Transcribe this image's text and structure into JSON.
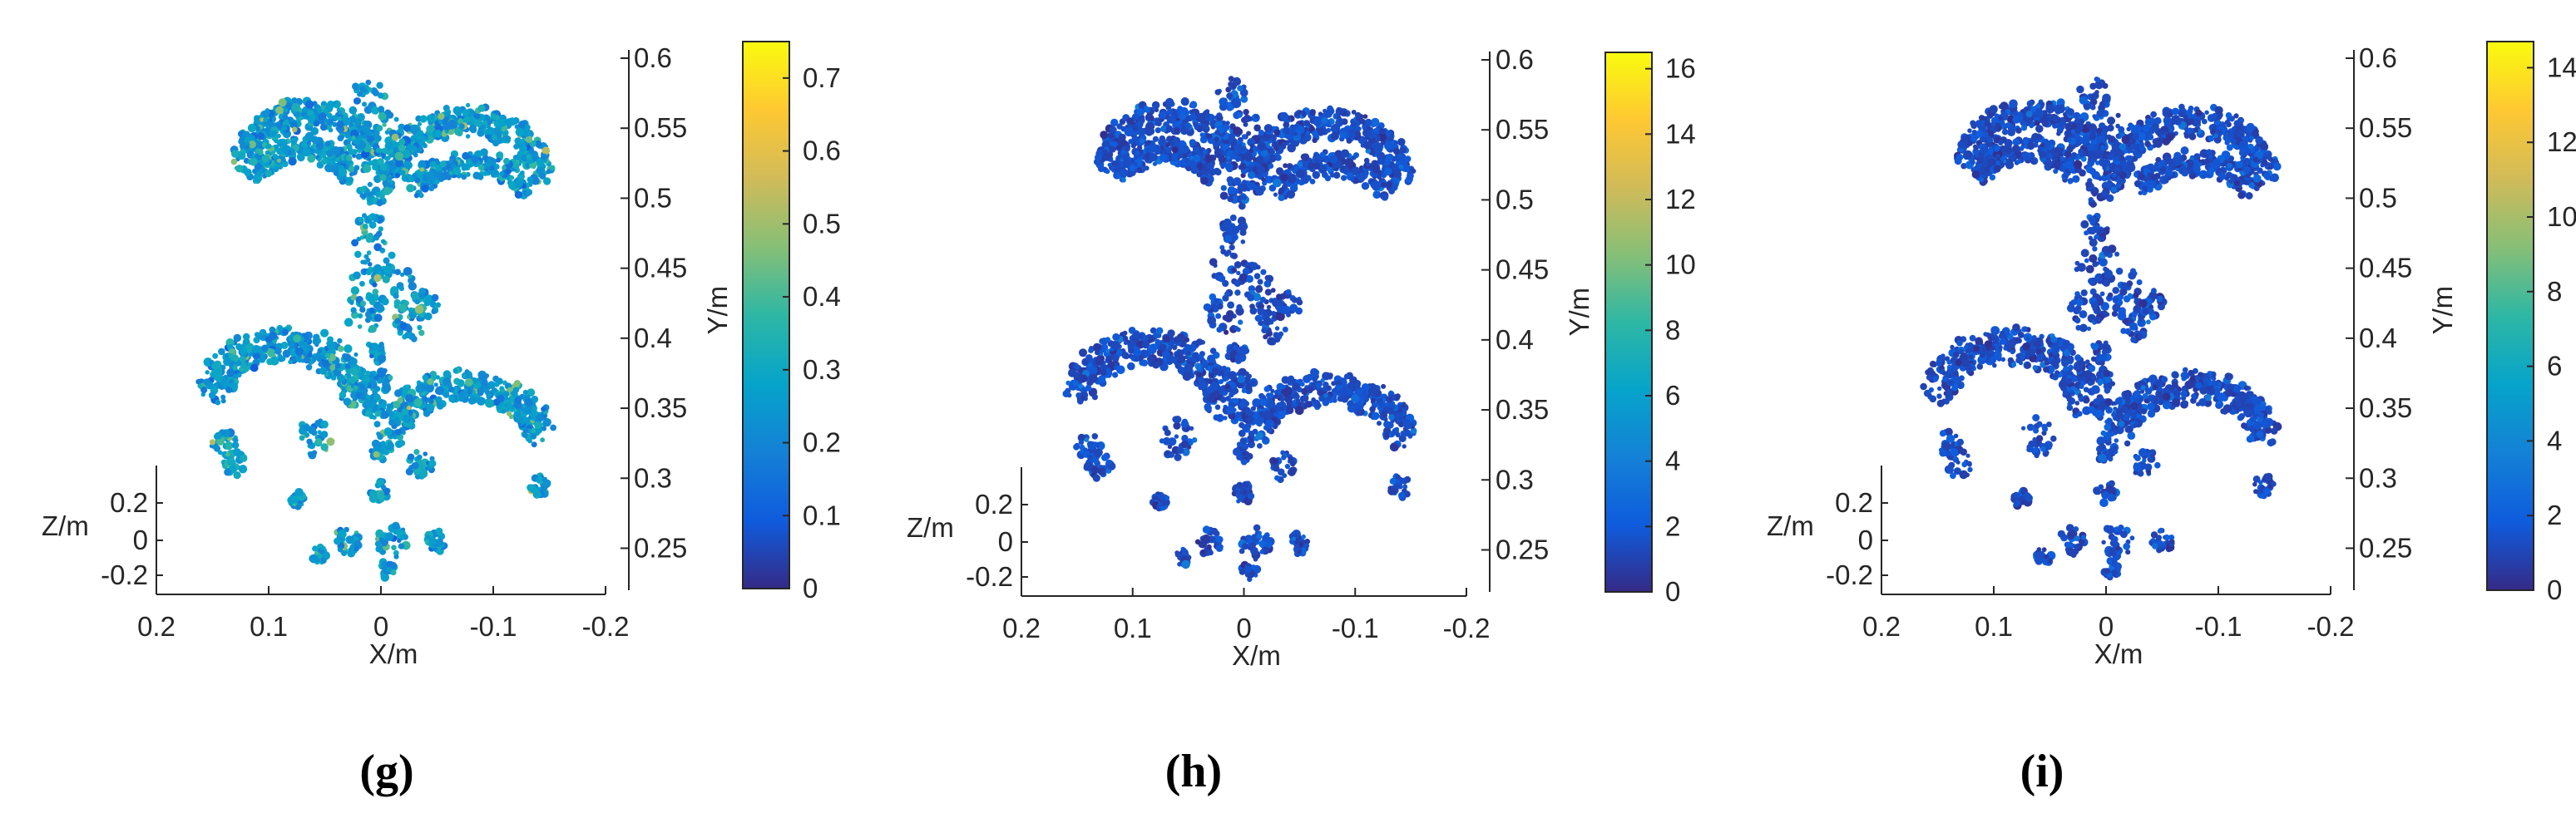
{
  "chart_data": [
    {
      "type": "scatter",
      "subtype": "3d-point-cloud",
      "panel_label": "(g)",
      "xlabel": "X/m",
      "ylabel": "Y/m",
      "zlabel": "Z/m",
      "x_ticks": [
        "0.2",
        "0.1",
        "0",
        "-0.1",
        "-0.2"
      ],
      "y_ticks": [
        "0.25",
        "0.3",
        "0.35",
        "0.4",
        "0.45",
        "0.5",
        "0.55",
        "0.6"
      ],
      "z_ticks": [
        "0.2",
        "0",
        "-0.2"
      ],
      "xlim": [
        0.2,
        -0.2
      ],
      "ylim": [
        0.22,
        0.6
      ],
      "zlim": [
        -0.2,
        0.3
      ],
      "colorbar": {
        "min": 0,
        "max": 0.75,
        "ticks": [
          "0",
          "0.1",
          "0.2",
          "0.3",
          "0.4",
          "0.5",
          "0.6",
          "0.7"
        ],
        "colormap": "parula"
      },
      "dominant_value": 0.25,
      "value_spread": 0.08
    },
    {
      "type": "scatter",
      "subtype": "3d-point-cloud",
      "panel_label": "(h)",
      "xlabel": "X/m",
      "ylabel": "Y/m",
      "zlabel": "Z/m",
      "x_ticks": [
        "0.2",
        "0.1",
        "0",
        "-0.1",
        "-0.2"
      ],
      "y_ticks": [
        "0.25",
        "0.3",
        "0.35",
        "0.4",
        "0.45",
        "0.5",
        "0.55",
        "0.6"
      ],
      "z_ticks": [
        "0.2",
        "0",
        "-0.2"
      ],
      "xlim": [
        0.2,
        -0.2
      ],
      "ylim": [
        0.22,
        0.6
      ],
      "zlim": [
        -0.2,
        0.3
      ],
      "colorbar": {
        "min": 0,
        "max": 16.5,
        "ticks": [
          "0",
          "2",
          "4",
          "6",
          "8",
          "10",
          "12",
          "14",
          "16"
        ],
        "colormap": "parula"
      },
      "dominant_value": 1.4,
      "value_spread": 0.7
    },
    {
      "type": "scatter",
      "subtype": "3d-point-cloud",
      "panel_label": "(i)",
      "xlabel": "X/m",
      "ylabel": "Y/m",
      "zlabel": "Z/m",
      "x_ticks": [
        "0.2",
        "0.1",
        "0",
        "-0.1",
        "-0.2"
      ],
      "y_ticks": [
        "0.25",
        "0.3",
        "0.35",
        "0.4",
        "0.45",
        "0.5",
        "0.55",
        "0.6"
      ],
      "z_ticks": [
        "0.2",
        "0",
        "-0.2"
      ],
      "xlim": [
        0.2,
        -0.2
      ],
      "ylim": [
        0.22,
        0.6
      ],
      "zlim": [
        -0.2,
        0.3
      ],
      "colorbar": {
        "min": 0,
        "max": 14.7,
        "ticks": [
          "0",
          "2",
          "4",
          "6",
          "8",
          "10",
          "12",
          "14"
        ],
        "colormap": "parula"
      },
      "dominant_value": 1.2,
      "value_spread": 0.6
    }
  ]
}
